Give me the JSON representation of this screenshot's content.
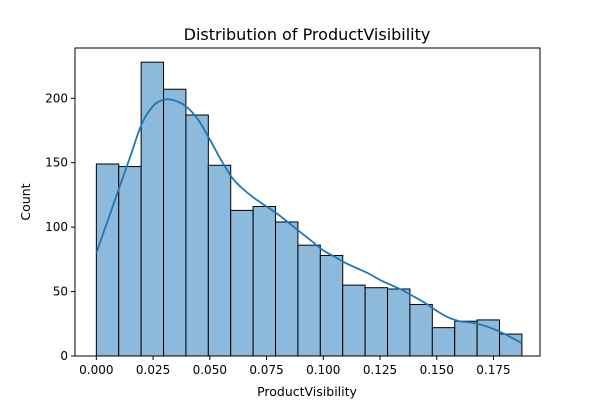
{
  "chart_data": {
    "type": "bar",
    "title": "Distribution of ProductVisibility",
    "xlabel": "ProductVisibility",
    "ylabel": "Count",
    "xlim": [
      -0.0094,
      0.1955
    ],
    "ylim": [
      0,
      239
    ],
    "xticks": [
      0.0,
      0.025,
      0.05,
      0.075,
      0.1,
      0.125,
      0.15,
      0.175
    ],
    "xtick_labels": [
      "0.000",
      "0.025",
      "0.050",
      "0.075",
      "0.100",
      "0.125",
      "0.150",
      "0.175"
    ],
    "yticks": [
      0,
      50,
      100,
      150,
      200
    ],
    "ytick_labels": [
      "0",
      "50",
      "100",
      "150",
      "200"
    ],
    "bin_edges": [
      0.0,
      0.00987,
      0.01974,
      0.02961,
      0.03948,
      0.04935,
      0.05922,
      0.06909,
      0.07896,
      0.08883,
      0.0987,
      0.10857,
      0.11844,
      0.12831,
      0.13818,
      0.14805,
      0.15792,
      0.16779,
      0.17766,
      0.18753
    ],
    "counts": [
      149,
      147,
      228,
      207,
      187,
      148,
      113,
      116,
      104,
      86,
      78,
      55,
      53,
      52,
      40,
      22,
      27,
      28,
      17
    ],
    "kde": {
      "x": [
        0.0,
        0.005,
        0.01,
        0.015,
        0.02,
        0.025,
        0.03,
        0.035,
        0.04,
        0.045,
        0.05,
        0.055,
        0.06,
        0.065,
        0.07,
        0.075,
        0.08,
        0.085,
        0.09,
        0.095,
        0.1,
        0.105,
        0.11,
        0.115,
        0.12,
        0.125,
        0.13,
        0.135,
        0.14,
        0.145,
        0.15,
        0.155,
        0.16,
        0.165,
        0.17,
        0.175,
        0.18,
        0.1875
      ],
      "y": [
        80,
        105,
        130,
        155,
        180,
        194,
        199,
        198,
        193,
        183,
        168,
        152,
        138,
        129,
        122,
        116,
        110,
        103,
        96,
        89,
        82,
        77,
        72,
        68,
        64,
        59,
        55,
        51,
        46,
        41,
        35,
        30,
        27,
        26,
        24,
        21,
        17,
        10
      ]
    },
    "grid": false,
    "colors": {
      "bar_fill": "#8db9da",
      "bar_edge": "#000000",
      "kde_line": "#1f77b4"
    }
  }
}
